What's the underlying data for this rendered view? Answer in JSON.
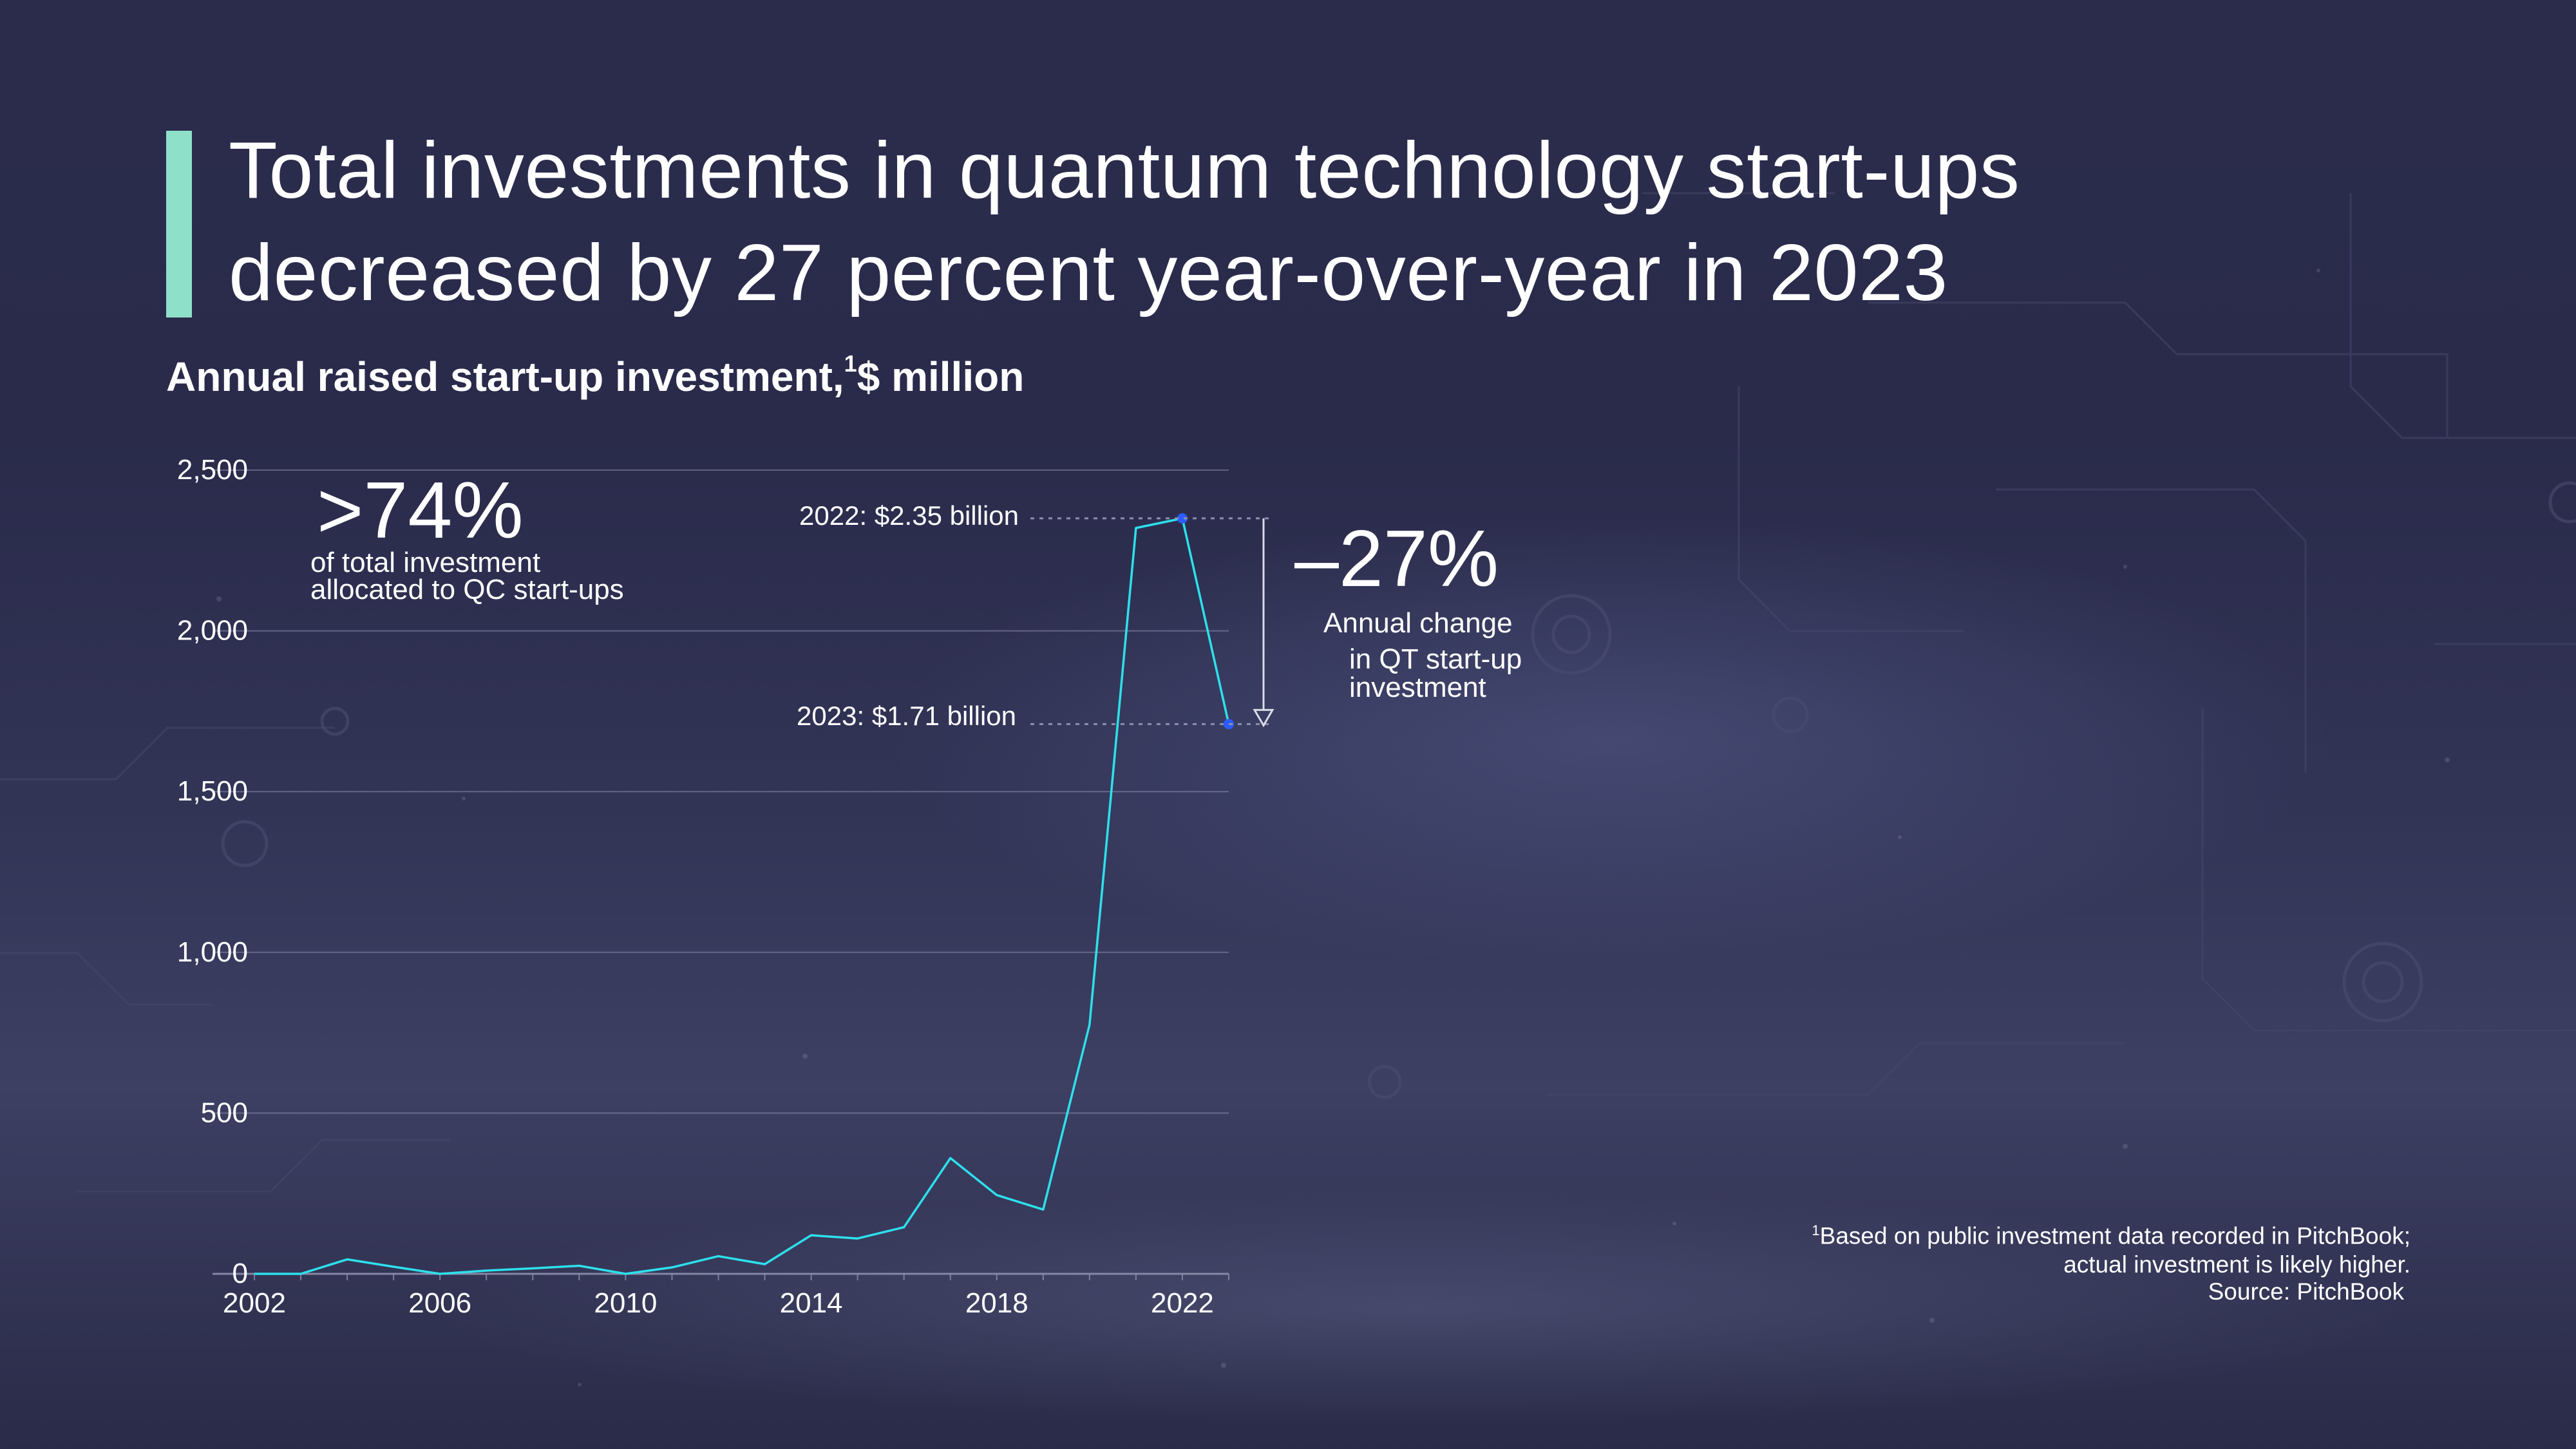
{
  "title_lines": [
    "Total investments in quantum technology start-ups",
    "decreased by 27 percent year-over-year in 2023"
  ],
  "subtitle_text": "Annual raised start-up investment,",
  "subtitle_marker": "1",
  "subtitle_unit": "$ million",
  "colors": {
    "accent": "#8fe0c8",
    "line": "#2de0ec",
    "point": "#2a5cff",
    "grid": "#8d8fae",
    "text": "#ffffff"
  },
  "callouts": {
    "qc_share": {
      "value": ">74%",
      "line1": "of total investment",
      "line2": "allocated to QC start-ups"
    },
    "change": {
      "value": "–27%",
      "line1": "Annual change",
      "line2": "in QT start-up",
      "line3": "investment"
    },
    "label_2022": "2022: $2.35 billion",
    "label_2023": "2023: $1.71 billion"
  },
  "footnote": {
    "marker": "1",
    "line1": "Based on public investment data recorded in PitchBook;",
    "line2": "actual investment is likely higher."
  },
  "source": "Source: PitchBook",
  "chart_data": {
    "type": "line",
    "title": "Total investments in quantum technology start-ups decreased by 27 percent year-over-year in 2023",
    "ylabel": "Annual raised start-up investment, $ million",
    "xlabel": "",
    "x": [
      2002,
      2003,
      2004,
      2005,
      2006,
      2007,
      2008,
      2009,
      2010,
      2011,
      2012,
      2013,
      2014,
      2015,
      2016,
      2017,
      2018,
      2019,
      2020,
      2021,
      2022,
      2023
    ],
    "series": [
      {
        "name": "",
        "values": [
          0,
          0,
          45,
          22,
          0,
          10,
          17,
          25,
          0,
          20,
          55,
          30,
          120,
          110,
          145,
          360,
          245,
          200,
          775,
          2320,
          2350,
          1710
        ]
      }
    ],
    "xlim": [
      2002,
      2023
    ],
    "ylim": [
      0,
      2500
    ],
    "yticks": [
      0,
      500,
      1000,
      1500,
      2000,
      2500
    ],
    "ytick_labels": [
      "0",
      "500",
      "1,000",
      "1,500",
      "2,000",
      "2,500"
    ],
    "xticks": [
      2002,
      2006,
      2010,
      2014,
      2018,
      2022
    ],
    "xtick_labels": [
      "2002",
      "2006",
      "2010",
      "2014",
      "2018",
      "2022"
    ],
    "highlighted_points": [
      2022,
      2023
    ],
    "grid": true,
    "legend": "none"
  }
}
